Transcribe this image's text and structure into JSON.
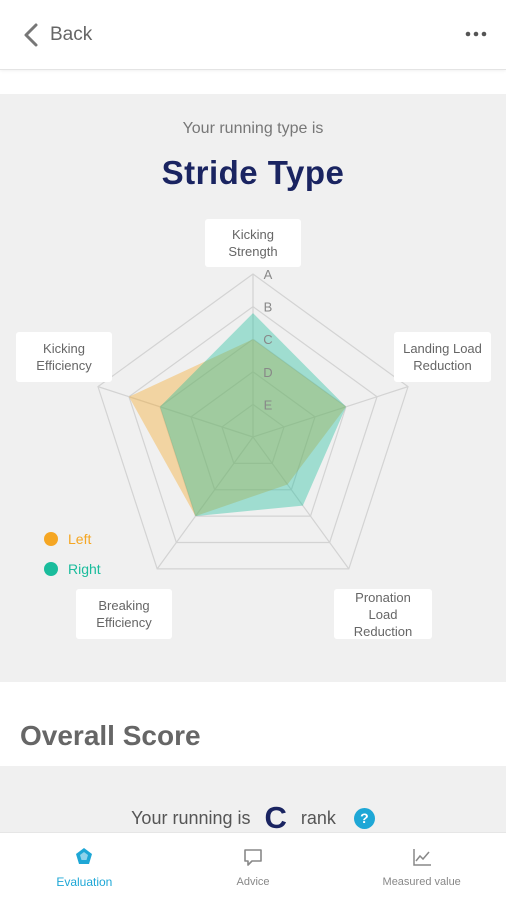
{
  "header": {
    "back_label": "Back"
  },
  "result": {
    "subtitle": "Your running type is",
    "type": "Stride Type"
  },
  "chart_data": {
    "type": "radar",
    "axes": [
      "Kicking Strength",
      "Landing Load Reduction",
      "Pronation Load Reduction",
      "Breaking Efficiency",
      "Kicking Efficiency"
    ],
    "rank_labels": [
      "A",
      "B",
      "C",
      "D",
      "E"
    ],
    "series": [
      {
        "name": "Left",
        "color": "#f5a623",
        "values": [
          3.0,
          3.0,
          1.8,
          3.0,
          4.0
        ]
      },
      {
        "name": "Right",
        "color": "#1abc9c",
        "values": [
          3.8,
          3.0,
          2.6,
          3.0,
          3.0
        ]
      }
    ],
    "scale_max": 5
  },
  "overall": {
    "title": "Overall Score",
    "prefix": "Your running is",
    "rank": "C",
    "suffix": "rank",
    "help_glyph": "?"
  },
  "tabs": [
    {
      "label": "Evaluation",
      "icon": "pentagon-icon",
      "active": true
    },
    {
      "label": "Advice",
      "icon": "speech-bubble-icon",
      "active": false
    },
    {
      "label": "Measured value",
      "icon": "line-chart-icon",
      "active": false
    }
  ]
}
